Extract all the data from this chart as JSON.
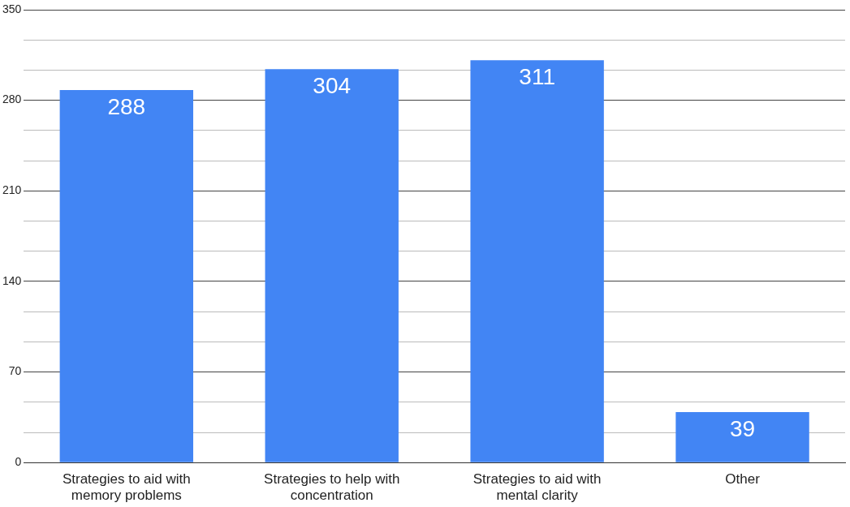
{
  "chart_data": {
    "type": "bar",
    "categories": [
      "Strategies to aid with memory problems",
      "Strategies to help with concentration",
      "Strategies to aid with mental clarity",
      "Other"
    ],
    "values": [
      288,
      304,
      311,
      39
    ],
    "color": "#4285f4",
    "ylim": [
      0,
      350
    ],
    "yticks": [
      0,
      {
        "value": 23.3,
        "label": null
      },
      {
        "value": 46.7,
        "label": null
      },
      70,
      {
        "value": 93.3,
        "label": null
      },
      {
        "value": 116.7,
        "label": null
      },
      140,
      {
        "value": 163.3,
        "label": null
      },
      {
        "value": 186.7,
        "label": null
      },
      210,
      {
        "value": 233.3,
        "label": null
      },
      {
        "value": 256.7,
        "label": null
      },
      280,
      {
        "value": 303.3,
        "label": null
      },
      {
        "value": 326.7,
        "label": null
      },
      350
    ],
    "grid": "y",
    "data_labels": true,
    "legend": false
  }
}
